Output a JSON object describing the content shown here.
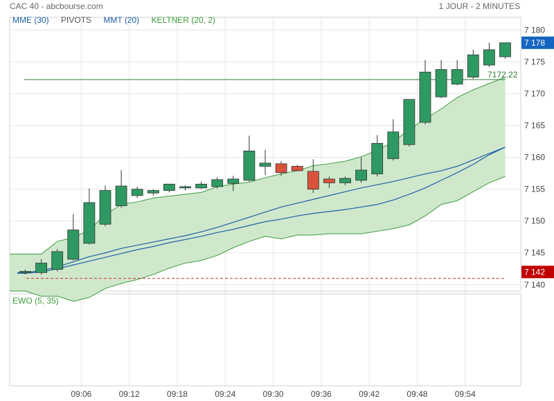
{
  "header": {
    "instrument": "CAC 40 - abcbourse.com",
    "timeframe": "1 JOUR - 2 MINUTES"
  },
  "legend": [
    {
      "label": "MME (30)",
      "color": "#1f5fa8"
    },
    {
      "label": "PIVOTS",
      "color": "#555555"
    },
    {
      "label": "MMT (20)",
      "color": "#1f5fa8"
    },
    {
      "label": "KELTNER (20, 2)",
      "color": "#3a9a3a"
    }
  ],
  "ewo": {
    "label": "EWO (5, 35)"
  },
  "colors": {
    "up": "#2e9a62",
    "down": "#d9533b",
    "keltner_fill": "#cfe8cc",
    "keltner_line": "#3a9a3a",
    "ma_line": "#1f5fa8",
    "pivot_high": "#2e7d32",
    "pivot_low": "#d32f2f",
    "last_price": "#1565c0",
    "low_tag": "#c00000"
  },
  "chart_data": {
    "type": "candlestick",
    "y_ticks": [
      "7 140",
      "7 145",
      "7 150",
      "7 155",
      "7 160",
      "7 165",
      "7 170",
      "7 175",
      "7 180"
    ],
    "y_tick_values": [
      7140,
      7145,
      7150,
      7155,
      7160,
      7165,
      7170,
      7175,
      7180
    ],
    "ylim": [
      7139,
      7182
    ],
    "x_ticks": [
      "09:06",
      "09:12",
      "09:18",
      "09:24",
      "09:30",
      "09:36",
      "09:42",
      "09:48",
      "09:54"
    ],
    "x_tick_index": [
      3.5,
      6.5,
      9.5,
      12.5,
      15.5,
      18.5,
      21.5,
      24.5,
      27.5
    ],
    "candles": [
      {
        "o": 7141.9,
        "h": 7142.4,
        "l": 7141.6,
        "c": 7142.1
      },
      {
        "o": 7141.9,
        "h": 7144.0,
        "l": 7141.6,
        "c": 7143.4
      },
      {
        "o": 7142.4,
        "h": 7145.6,
        "l": 7142.1,
        "c": 7145.2
      },
      {
        "o": 7144.0,
        "h": 7151.1,
        "l": 7143.8,
        "c": 7148.6
      },
      {
        "o": 7146.5,
        "h": 7155.1,
        "l": 7146.3,
        "c": 7152.9
      },
      {
        "o": 7149.5,
        "h": 7155.6,
        "l": 7149.2,
        "c": 7154.8
      },
      {
        "o": 7152.4,
        "h": 7158.0,
        "l": 7152.1,
        "c": 7155.5
      },
      {
        "o": 7154.0,
        "h": 7155.4,
        "l": 7153.6,
        "c": 7155.0
      },
      {
        "o": 7154.4,
        "h": 7155.0,
        "l": 7154.0,
        "c": 7154.8
      },
      {
        "o": 7154.8,
        "h": 7155.7,
        "l": 7154.5,
        "c": 7155.8
      },
      {
        "o": 7155.2,
        "h": 7155.6,
        "l": 7154.8,
        "c": 7155.4
      },
      {
        "o": 7155.2,
        "h": 7156.2,
        "l": 7155.0,
        "c": 7155.8
      },
      {
        "o": 7155.4,
        "h": 7156.9,
        "l": 7155.1,
        "c": 7156.5
      },
      {
        "o": 7155.9,
        "h": 7157.1,
        "l": 7154.7,
        "c": 7156.6
      },
      {
        "o": 7156.4,
        "h": 7163.4,
        "l": 7156.2,
        "c": 7161.0
      },
      {
        "o": 7158.6,
        "h": 7161.2,
        "l": 7157.2,
        "c": 7159.1
      },
      {
        "o": 7159.0,
        "h": 7159.4,
        "l": 7157.1,
        "c": 7157.6
      },
      {
        "o": 7158.6,
        "h": 7158.8,
        "l": 7157.8,
        "c": 7157.9
      },
      {
        "o": 7157.8,
        "h": 7159.7,
        "l": 7154.4,
        "c": 7155.0
      },
      {
        "o": 7156.6,
        "h": 7157.0,
        "l": 7155.2,
        "c": 7156.0
      },
      {
        "o": 7156.0,
        "h": 7157.0,
        "l": 7155.6,
        "c": 7156.7
      },
      {
        "o": 7156.4,
        "h": 7160.0,
        "l": 7156.0,
        "c": 7158.0
      },
      {
        "o": 7157.4,
        "h": 7163.5,
        "l": 7157.0,
        "c": 7162.2
      },
      {
        "o": 7159.8,
        "h": 7166.0,
        "l": 7159.5,
        "c": 7164.0
      },
      {
        "o": 7162.0,
        "h": 7169.1,
        "l": 7161.7,
        "c": 7169.1
      },
      {
        "o": 7165.5,
        "h": 7175.3,
        "l": 7165.2,
        "c": 7173.4
      },
      {
        "o": 7169.5,
        "h": 7175.3,
        "l": 7169.3,
        "c": 7173.8
      },
      {
        "o": 7171.5,
        "h": 7175.3,
        "l": 7171.3,
        "c": 7173.8
      },
      {
        "o": 7172.6,
        "h": 7176.9,
        "l": 7172.3,
        "c": 7176.1
      },
      {
        "o": 7174.5,
        "h": 7178.0,
        "l": 7174.2,
        "c": 7176.9
      },
      {
        "o": 7175.8,
        "h": 7178.0,
        "l": 7175.5,
        "c": 7178.0
      }
    ],
    "keltner_upper": [
      7144.8,
      7144.8,
      7146.8,
      7147.4,
      7148.6,
      7151.0,
      7152.6,
      7153.0,
      7153.6,
      7153.9,
      7154.2,
      7154.5,
      7155.4,
      7155.8,
      7156.1,
      7156.8,
      7157.4,
      7157.9,
      7158.7,
      7159.0,
      7159.4,
      7160.1,
      7161.1,
      7162.4,
      7164.4,
      7166.0,
      7167.6,
      7169.4,
      7170.6,
      7171.6,
      7172.6
    ],
    "keltner_lower": [
      7139.0,
      7138.2,
      7138.2,
      7137.4,
      7138.0,
      7139.4,
      7140.2,
      7140.8,
      7141.6,
      7142.6,
      7143.4,
      7143.8,
      7144.6,
      7145.8,
      7146.8,
      7147.6,
      7147.2,
      7147.8,
      7147.8,
      7148.0,
      7148.0,
      7148.0,
      7148.4,
      7148.8,
      7149.4,
      7150.8,
      7152.6,
      7153.2,
      7154.6,
      7156.0,
      7157.0
    ],
    "mme_30": [
      7141.9,
      7142.2,
      7142.8,
      7143.6,
      7144.4,
      7145.0,
      7145.7,
      7146.2,
      7146.7,
      7147.2,
      7147.7,
      7148.3,
      7149.0,
      7149.8,
      7150.6,
      7151.4,
      7152.2,
      7152.8,
      7153.4,
      7154.0,
      7154.6,
      7155.2,
      7155.7,
      7156.2,
      7156.8,
      7157.4,
      7157.9,
      7158.6,
      7159.6,
      7160.6,
      7161.6
    ],
    "mmt_20": [
      7141.8,
      7142.0,
      7142.5,
      7143.1,
      7143.7,
      7144.3,
      7144.9,
      7145.5,
      7146.0,
      7146.6,
      7147.1,
      7147.6,
      7148.2,
      7148.7,
      7149.3,
      7149.9,
      7150.3,
      7150.8,
      7151.2,
      7151.5,
      7151.8,
      7152.2,
      7152.6,
      7153.3,
      7154.2,
      7155.2,
      7156.4,
      7157.6,
      7158.9,
      7160.4,
      7161.6
    ],
    "pivot_high": 7172.22,
    "pivot_high_label": "7172.22",
    "pivot_low": 7141.0,
    "last_price_tag": "7 178",
    "last_price_value": 7178.0,
    "low_tag": "7 142",
    "low_tag_value": 7142.0
  }
}
